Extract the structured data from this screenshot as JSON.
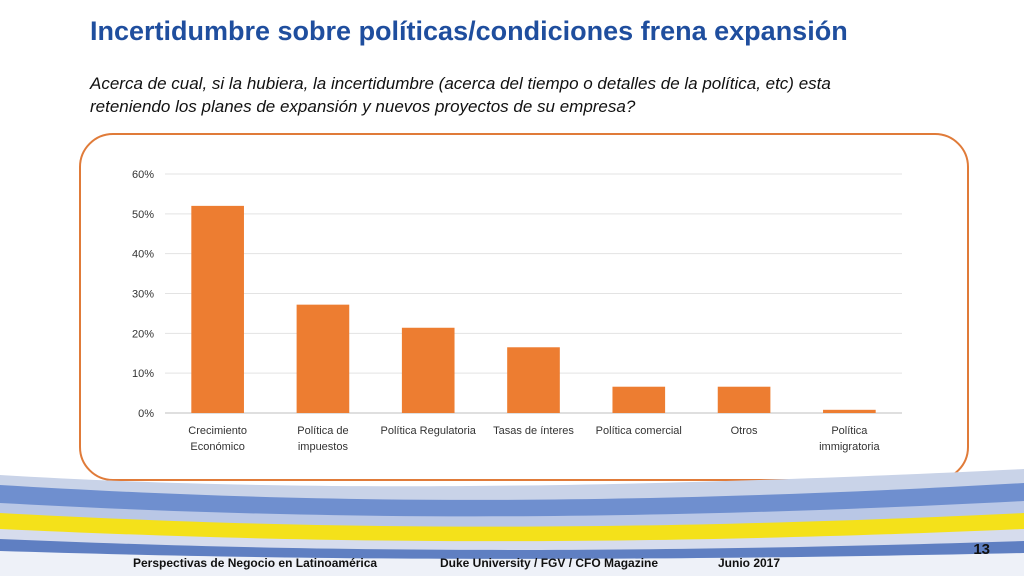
{
  "slide": {
    "title": "Incertidumbre sobre políticas/condiciones frena expansión",
    "subtitle": "Acerca de cual, si la hubiera, la incertidumbre (acerca del tiempo o detalles de la política, etc) esta reteniendo los planes de expansión y nuevos proyectos de su empresa?"
  },
  "footer": {
    "left": "Perspectivas de Negocio en Latinoamérica",
    "center": "Duke University / FGV / CFO Magazine",
    "right": "Junio 2017",
    "page_number": "13"
  },
  "colors": {
    "title": "#1f4e9e",
    "bar": "#ed7d31",
    "frame": "#e07b39",
    "band_blue": "#6f8fcf",
    "band_yellow": "#f4e11a"
  },
  "chart_data": {
    "type": "bar",
    "categories": [
      [
        "Crecimiento",
        "Económico"
      ],
      [
        "Política de",
        "impuestos"
      ],
      [
        "Política Regulatoria"
      ],
      [
        "Tasas de ínteres"
      ],
      [
        "Política comercial"
      ],
      [
        "Otros"
      ],
      [
        "Política",
        "immigratoria"
      ]
    ],
    "values": [
      52,
      27.2,
      21.4,
      16.5,
      6.6,
      6.6,
      0.8
    ],
    "ylim": [
      0,
      60
    ],
    "yticks": [
      "0%",
      "10%",
      "20%",
      "30%",
      "40%",
      "50%",
      "60%"
    ],
    "grid": true,
    "legend": "none"
  }
}
